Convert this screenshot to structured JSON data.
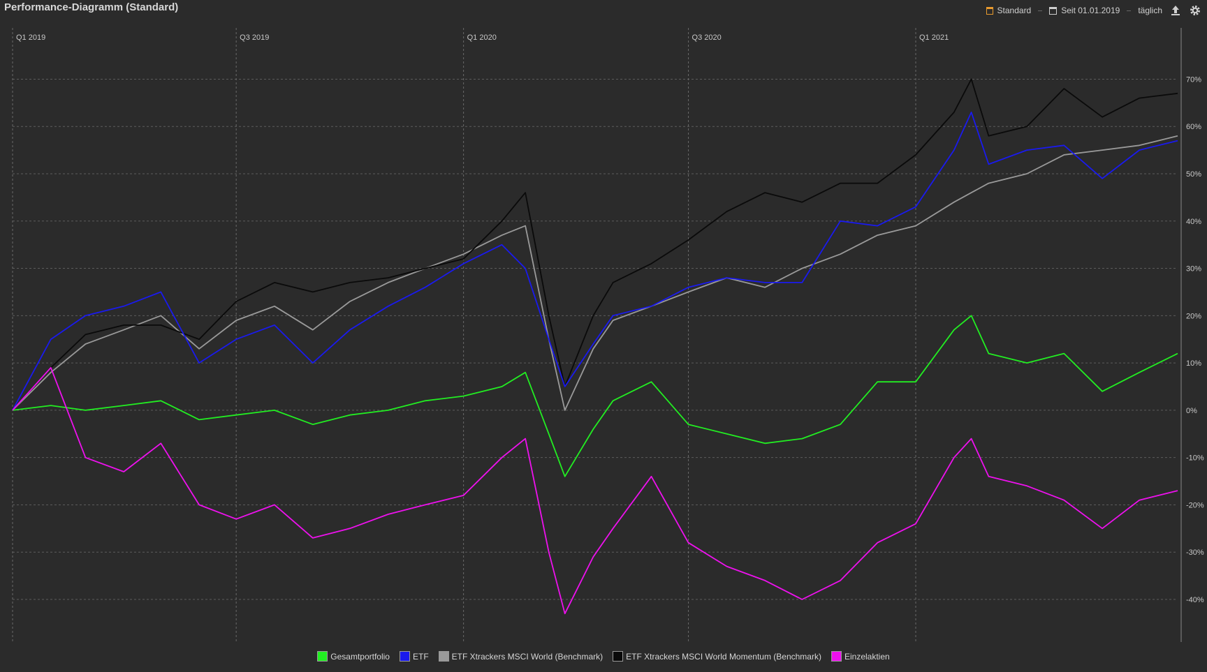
{
  "header": {
    "title": "Performance-Diagramm (Standard)",
    "toolbar": {
      "view_label": "Standard",
      "range_label": "Seit 01.01.2019",
      "interval_label": "täglich",
      "export_icon": "upload-icon",
      "settings_icon": "gear-icon"
    }
  },
  "colors": {
    "background": "#2b2b2b",
    "grid": "#5c5c5c",
    "accent": "#e89a2e"
  },
  "chart_data": {
    "type": "line",
    "x_ticks": [
      "Q1 2019",
      "Q3 2019",
      "Q1 2020",
      "Q3 2020",
      "Q1 2021"
    ],
    "y_ticks": [
      "70%",
      "60%",
      "50%",
      "40%",
      "30%",
      "20%",
      "10%",
      "0%",
      "-10%",
      "-20%",
      "-30%",
      "-40%"
    ],
    "ylim": [
      -49,
      77
    ],
    "grid": true,
    "legend_position": "bottom",
    "x": [
      "2019-01-01",
      "2019-02-01",
      "2019-03-01",
      "2019-04-01",
      "2019-05-01",
      "2019-06-01",
      "2019-07-01",
      "2019-08-01",
      "2019-09-01",
      "2019-10-01",
      "2019-11-01",
      "2019-12-01",
      "2020-01-01",
      "2020-02-01",
      "2020-02-20",
      "2020-03-10",
      "2020-03-23",
      "2020-04-15",
      "2020-05-01",
      "2020-06-01",
      "2020-07-01",
      "2020-08-01",
      "2020-09-01",
      "2020-10-01",
      "2020-11-01",
      "2020-12-01",
      "2021-01-01",
      "2021-02-01",
      "2021-02-15",
      "2021-03-01",
      "2021-04-01",
      "2021-05-01",
      "2021-06-01",
      "2021-07-01",
      "2021-08-01"
    ],
    "series": [
      {
        "name": "Gesamtportfolio",
        "color": "#22ee22",
        "values": [
          0,
          1,
          0,
          1,
          2,
          -2,
          -1,
          0,
          -3,
          -1,
          0,
          2,
          3,
          5,
          8,
          -5,
          -14,
          -4,
          2,
          6,
          -3,
          -5,
          -7,
          -6,
          -3,
          6,
          6,
          17,
          20,
          12,
          10,
          12,
          4,
          8,
          12
        ]
      },
      {
        "name": "ETF",
        "color": "#1a1aee",
        "values": [
          0,
          15,
          20,
          22,
          25,
          10,
          15,
          18,
          10,
          17,
          22,
          26,
          31,
          35,
          30,
          15,
          5,
          14,
          20,
          22,
          26,
          28,
          27,
          27,
          40,
          39,
          43,
          55,
          63,
          52,
          55,
          56,
          49,
          55,
          57
        ]
      },
      {
        "name": "ETF Xtrackers MSCI World (Benchmark)",
        "color": "#9a9a9a",
        "values": [
          0,
          8,
          14,
          17,
          20,
          13,
          19,
          22,
          17,
          23,
          27,
          30,
          33,
          37,
          39,
          15,
          0,
          13,
          19,
          22,
          25,
          28,
          26,
          30,
          33,
          37,
          39,
          44,
          46,
          48,
          50,
          54,
          55,
          56,
          58
        ]
      },
      {
        "name": "ETF Xtrackers MSCI World Momentum (Benchmark)",
        "color": "#0a0a0a",
        "values": [
          0,
          9,
          16,
          18,
          18,
          15,
          23,
          27,
          25,
          27,
          28,
          30,
          32,
          40,
          46,
          20,
          5,
          20,
          27,
          31,
          36,
          42,
          46,
          44,
          48,
          48,
          54,
          63,
          70,
          58,
          60,
          68,
          62,
          66,
          67
        ]
      },
      {
        "name": "Einzelaktien",
        "color": "#ee11ee",
        "values": [
          0,
          9,
          -10,
          -13,
          -7,
          -20,
          -23,
          -20,
          -27,
          -25,
          -22,
          -20,
          -18,
          -10,
          -6,
          -30,
          -43,
          -31,
          -25,
          -14,
          -28,
          -33,
          -36,
          -40,
          -36,
          -28,
          -24,
          -10,
          -6,
          -14,
          -16,
          -19,
          -25,
          -19,
          -17
        ]
      }
    ]
  }
}
